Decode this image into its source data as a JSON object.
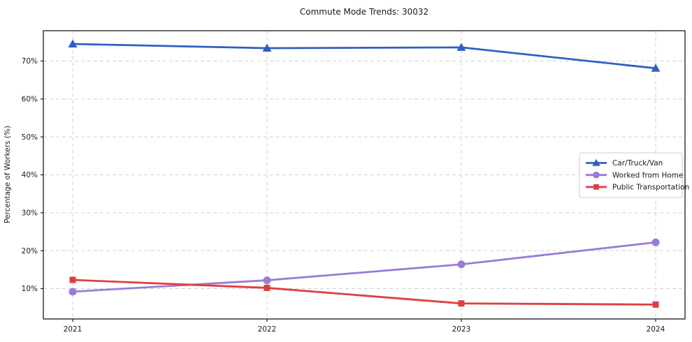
{
  "title": "Commute Mode Trends: 30032",
  "axes": {
    "ylabel": "Percentage of Workers (%)",
    "xlabel": "",
    "y_tick_labels": [
      "10%",
      "20%",
      "30%",
      "40%",
      "50%",
      "60%",
      "70%"
    ],
    "x_tick_labels": [
      "2021",
      "2022",
      "2023",
      "2024"
    ]
  },
  "colors": {
    "car_truck_van": "#2f5fc4",
    "worked_from_home": "#9a7bd8",
    "public_transportation": "#e03e3e",
    "gridline": "#d0d0d0",
    "axis_border": "#1a1a1a",
    "legend_border": "#cccccc",
    "background": "#ffffff"
  },
  "chart_data": {
    "type": "line",
    "title": "Commute Mode Trends: 30032",
    "xlabel": "",
    "ylabel": "Percentage of Workers (%)",
    "categories": [
      2021,
      2022,
      2023,
      2024
    ],
    "series": [
      {
        "name": "Car/Truck/Van",
        "marker": "triangle",
        "color": "#2f5fc4",
        "values": [
          74.5,
          73.4,
          73.6,
          68.1
        ]
      },
      {
        "name": "Worked from Home",
        "marker": "circle",
        "color": "#9a7bd8",
        "values": [
          9.2,
          12.2,
          16.4,
          22.2
        ]
      },
      {
        "name": "Public Transportation",
        "marker": "square",
        "color": "#e03e3e",
        "values": [
          12.3,
          10.2,
          6.1,
          5.8
        ]
      }
    ],
    "ylim": [
      2,
      78
    ],
    "y_tick_values": [
      10,
      20,
      30,
      40,
      50,
      60,
      70
    ],
    "grid": true,
    "grid_style": "dashed",
    "legend_position": "right"
  }
}
